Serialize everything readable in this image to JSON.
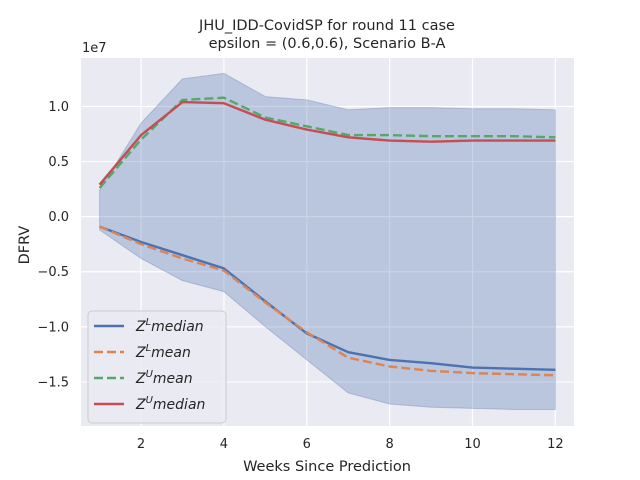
{
  "chart_data": {
    "type": "line",
    "title_line1": "JHU_IDD-CovidSP for round 11 case",
    "title_line2": "epsilon = (0.6,0.6), Scenario B-A",
    "xlabel": "Weeks Since Prediction",
    "ylabel": "DFRV",
    "y_offset_text": "1e7",
    "xlim": [
      0.55,
      12.45
    ],
    "ylim": [
      -1.9,
      1.44
    ],
    "x_ticks": [
      2,
      4,
      6,
      8,
      10,
      12
    ],
    "x_tick_labels": [
      "2",
      "4",
      "6",
      "8",
      "10",
      "12"
    ],
    "y_ticks": [
      -1.5,
      -1.0,
      -0.5,
      0.0,
      0.5,
      1.0
    ],
    "y_tick_labels": [
      "−1.5",
      "−1.0",
      "−0.5",
      "0.0",
      "0.5",
      "1.0"
    ],
    "x": [
      1,
      2,
      3,
      4,
      5,
      6,
      7,
      8,
      9,
      10,
      11,
      12
    ],
    "series": [
      {
        "key": "ZL_median",
        "legend_main": "Z",
        "legend_sup": "L",
        "legend_rest": "median",
        "color": "#4c72b0",
        "dash": "solid",
        "values": [
          -0.09,
          -0.23,
          -0.35,
          -0.47,
          -0.77,
          -1.06,
          -1.23,
          -1.3,
          -1.33,
          -1.37,
          -1.38,
          -1.39
        ]
      },
      {
        "key": "ZL_mean",
        "legend_main": "Z",
        "legend_sup": "L",
        "legend_rest": "mean",
        "color": "#dd8452",
        "dash": "dashed",
        "values": [
          -0.09,
          -0.25,
          -0.38,
          -0.49,
          -0.78,
          -1.05,
          -1.28,
          -1.36,
          -1.4,
          -1.42,
          -1.43,
          -1.44
        ]
      },
      {
        "key": "ZU_mean",
        "legend_main": "Z",
        "legend_sup": "U",
        "legend_rest": "mean",
        "color": "#55a868",
        "dash": "dashed",
        "values": [
          0.26,
          0.7,
          1.06,
          1.08,
          0.9,
          0.82,
          0.74,
          0.74,
          0.73,
          0.73,
          0.73,
          0.72
        ]
      },
      {
        "key": "ZU_median",
        "legend_main": "Z",
        "legend_sup": "U",
        "legend_rest": "median",
        "color": "#c44e52",
        "dash": "solid",
        "values": [
          0.29,
          0.74,
          1.04,
          1.03,
          0.88,
          0.79,
          0.72,
          0.69,
          0.68,
          0.69,
          0.69,
          0.69
        ]
      }
    ],
    "band": {
      "color": "#4c72b0",
      "upper": [
        0.24,
        0.85,
        1.25,
        1.3,
        1.09,
        1.06,
        0.97,
        0.99,
        0.99,
        0.98,
        0.98,
        0.97
      ],
      "lower": [
        -0.12,
        -0.38,
        -0.58,
        -0.68,
        -1.0,
        -1.3,
        -1.6,
        -1.7,
        -1.73,
        -1.74,
        -1.75,
        -1.75
      ]
    },
    "grid": true,
    "legend_position": "lower-left",
    "colors": {
      "axes_bg": "#eaeaf2",
      "grid": "#ffffff",
      "text": "#262626"
    }
  }
}
